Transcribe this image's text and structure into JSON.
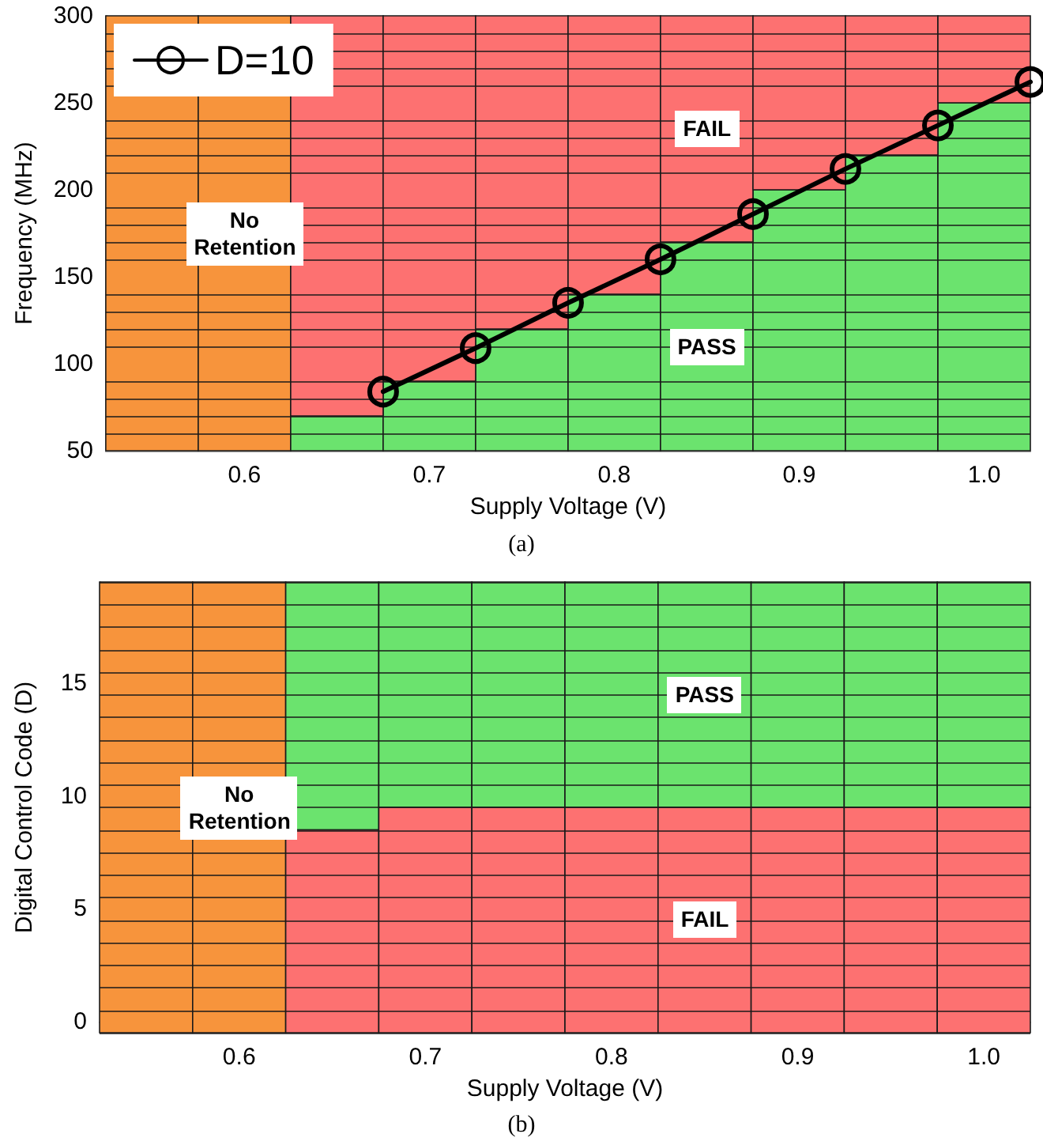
{
  "chart_data": [
    {
      "type": "bar",
      "xlabel": "Supply Voltage (V)",
      "ylabel": "Frequency (MHz)",
      "annotations": [
        "(a)"
      ],
      "x": [
        0.55,
        0.6,
        0.65,
        0.7,
        0.75,
        0.8,
        0.85,
        0.9,
        0.95,
        1.0
      ],
      "xlim": [
        0.525,
        1.025
      ],
      "xticks": [
        0.6,
        0.7,
        0.8,
        0.9,
        {
          "value": 1,
          "label": "1.0"
        }
      ],
      "ylim": [
        50,
        300
      ],
      "yticks": [
        50,
        {
          "value": 60,
          "label": null
        },
        {
          "value": 70,
          "label": null
        },
        {
          "value": 80,
          "label": null
        },
        {
          "value": 90,
          "label": null
        },
        100,
        {
          "value": 110,
          "label": null
        },
        {
          "value": 120,
          "label": null
        },
        {
          "value": 130,
          "label": null
        },
        {
          "value": 140,
          "label": null
        },
        150,
        {
          "value": 160,
          "label": null
        },
        {
          "value": 170,
          "label": null
        },
        {
          "value": 180,
          "label": null
        },
        {
          "value": 190,
          "label": null
        },
        200,
        {
          "value": 210,
          "label": null
        },
        {
          "value": 220,
          "label": null
        },
        {
          "value": 230,
          "label": null
        },
        {
          "value": 240,
          "label": null
        },
        250,
        {
          "value": 260,
          "label": null
        },
        {
          "value": 270,
          "label": null
        },
        {
          "value": 280,
          "label": null
        },
        {
          "value": 290,
          "label": null
        },
        300
      ],
      "grid": "y",
      "series": [
        {
          "name": "No Retention",
          "color": "#f7943c",
          "base": [
            50,
            50,
            null,
            null,
            null,
            null,
            null,
            null,
            null,
            null
          ],
          "values": [
            250,
            250,
            null,
            null,
            null,
            null,
            null,
            null,
            null,
            null
          ]
        },
        {
          "name": "PASS",
          "color": "#6be36e",
          "base": [
            null,
            null,
            50,
            50,
            50,
            50,
            50,
            50,
            50,
            50
          ],
          "values": [
            null,
            null,
            20,
            40,
            70,
            90,
            120,
            150,
            170,
            200
          ]
        },
        {
          "name": "FAIL",
          "color": "#fd7171",
          "base": [
            null,
            null,
            70,
            90,
            120,
            140,
            170,
            200,
            220,
            250
          ],
          "values": [
            null,
            null,
            230,
            210,
            180,
            160,
            130,
            100,
            80,
            50
          ]
        },
        {
          "type": "line",
          "name": "D=10",
          "color": "#000000",
          "x": [
            0.675,
            0.725,
            0.775,
            0.825,
            0.875,
            0.925,
            0.975,
            1.025
          ],
          "values": [
            84,
            109,
            135,
            160,
            186,
            212,
            237,
            262
          ]
        }
      ],
      "marker": "circle",
      "legend": "top left"
    },
    {
      "type": "bar",
      "xlabel": "Supply Voltage (V)",
      "ylabel": "Digital Control Code (D)",
      "annotations": [
        "(b)"
      ],
      "x": [
        0.55,
        0.6,
        0.65,
        0.7,
        0.75,
        0.8,
        0.85,
        0.9,
        0.95,
        1.0
      ],
      "xlim": [
        0.525,
        1.025
      ],
      "xticks": [
        0.6,
        0.7,
        0.8,
        0.9,
        {
          "value": 1,
          "label": "1.0"
        }
      ],
      "ylim": [
        -0.5,
        19.5
      ],
      "yticks": [
        {
          "value": -0.5,
          "label": null
        },
        0,
        {
          "value": 0.5,
          "label": null
        },
        {
          "value": 1.5,
          "label": null
        },
        {
          "value": 2.5,
          "label": null
        },
        {
          "value": 3.5,
          "label": null
        },
        {
          "value": 4.5,
          "label": null
        },
        5,
        {
          "value": 5.5,
          "label": null
        },
        {
          "value": 6.5,
          "label": null
        },
        {
          "value": 7.5,
          "label": null
        },
        {
          "value": 8.5,
          "label": null
        },
        {
          "value": 9.5,
          "label": null
        },
        10,
        {
          "value": 10.5,
          "label": null
        },
        {
          "value": 11.5,
          "label": null
        },
        {
          "value": 12.5,
          "label": null
        },
        {
          "value": 13.5,
          "label": null
        },
        {
          "value": 14.5,
          "label": null
        },
        15,
        {
          "value": 15.5,
          "label": null
        },
        {
          "value": 16.5,
          "label": null
        },
        {
          "value": 17.5,
          "label": null
        },
        {
          "value": 18.5,
          "label": null
        },
        {
          "value": 19.5,
          "label": null
        }
      ],
      "grid": "y",
      "series": [
        {
          "name": "No Retention",
          "color": "#f7943c",
          "base": [
            -0.5,
            -0.5,
            null,
            null,
            null,
            null,
            null,
            null,
            null,
            null
          ],
          "values": [
            20,
            20,
            null,
            null,
            null,
            null,
            null,
            null,
            null,
            null
          ]
        },
        {
          "name": "PASS",
          "color": "#6be36e",
          "base": [
            null,
            null,
            8.5,
            9.5,
            9.5,
            9.5,
            9.5,
            9.5,
            9.5,
            9.5
          ],
          "values": [
            null,
            null,
            11,
            10,
            10,
            10,
            10,
            10,
            10,
            10
          ]
        },
        {
          "name": "FAIL",
          "color": "#fd7171",
          "base": [
            null,
            null,
            -0.5,
            -0.5,
            -0.5,
            -0.5,
            -0.5,
            -0.5,
            -0.5,
            -0.5
          ],
          "values": [
            null,
            null,
            9,
            10,
            10,
            10,
            10,
            10,
            10,
            10
          ]
        }
      ]
    }
  ]
}
